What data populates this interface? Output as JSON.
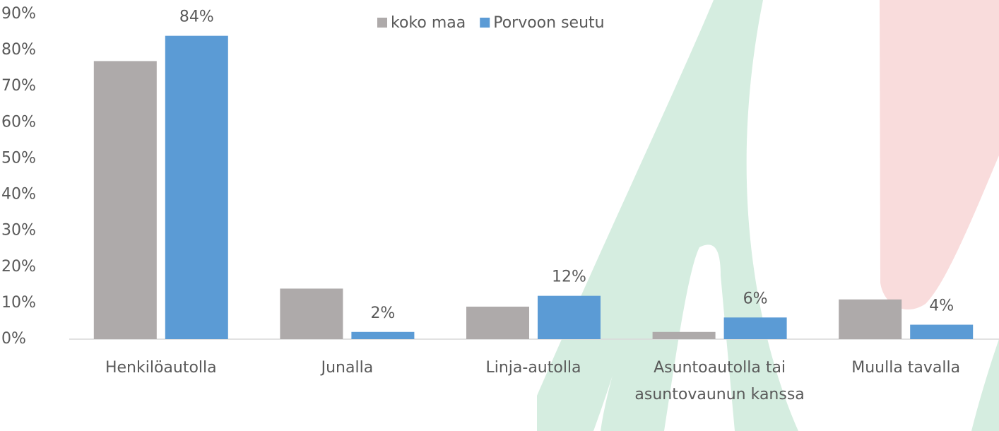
{
  "chart_data": {
    "type": "bar",
    "categories": [
      "Henkilöautolla",
      "Junalla",
      "Linja-autolla",
      "Asuntoautolla tai asuntovaunun kanssa",
      "Muulla tavalla"
    ],
    "series": [
      {
        "name": "koko maa",
        "color": "#aeaaaa",
        "values": [
          77,
          14,
          9,
          2,
          11
        ]
      },
      {
        "name": "Porvoon seutu",
        "color": "#5b9bd5",
        "values": [
          84,
          2,
          12,
          6,
          4
        ],
        "value_labels": [
          "84%",
          "2%",
          "12%",
          "6%",
          "4%"
        ]
      }
    ],
    "ylim": [
      0,
      90
    ],
    "yticks": [
      {
        "value": 0,
        "label": "0%"
      },
      {
        "value": 10,
        "label": "10%"
      },
      {
        "value": 20,
        "label": "20%"
      },
      {
        "value": 30,
        "label": "30%"
      },
      {
        "value": 40,
        "label": "40%"
      },
      {
        "value": 50,
        "label": "50%"
      },
      {
        "value": 60,
        "label": "60%"
      },
      {
        "value": 70,
        "label": "70%"
      },
      {
        "value": 80,
        "label": "80%"
      },
      {
        "value": 90,
        "label": "90%"
      }
    ],
    "grid": false,
    "legend": "top"
  }
}
